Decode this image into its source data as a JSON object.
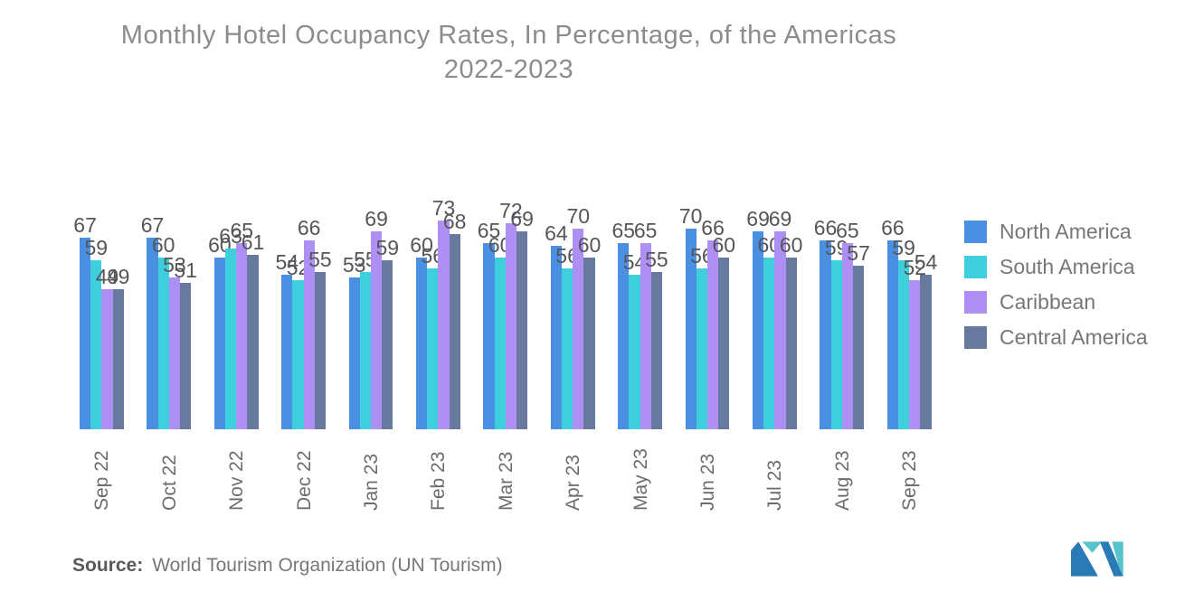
{
  "title": {
    "line1": "Monthly Hotel Occupancy Rates, In Percentage, of the Americas",
    "line2": "2022-2023"
  },
  "source": {
    "label": "Source:",
    "text": "World Tourism Organization (UN Tourism)"
  },
  "logo": {
    "name": "mordor-intelligence-logo",
    "blue": "#2a7ab8",
    "teal": "#55c5cb"
  },
  "chart_data": {
    "type": "bar",
    "title": "Monthly Hotel Occupancy Rates, In Percentage, of the Americas 2022-2023",
    "categories": [
      "Sep 22",
      "Oct 22",
      "Nov 22",
      "Dec 22",
      "Jan 23",
      "Feb 23",
      "Mar 23",
      "Apr 23",
      "May 23",
      "Jun 23",
      "Jul 23",
      "Aug 23",
      "Sep 23"
    ],
    "series": [
      {
        "name": "North America",
        "color": "#4a90e2",
        "values": [
          67,
          67,
          60,
          54,
          53,
          60,
          65,
          64,
          65,
          70,
          69,
          66,
          66
        ]
      },
      {
        "name": "South America",
        "color": "#3fcedc",
        "values": [
          59,
          60,
          63,
          52,
          55,
          56,
          60,
          56,
          54,
          56,
          60,
          59,
          59
        ]
      },
      {
        "name": "Caribbean",
        "color": "#ae90f4",
        "values": [
          49,
          53,
          65,
          66,
          69,
          73,
          72,
          70,
          65,
          66,
          69,
          65,
          52
        ]
      },
      {
        "name": "Central America",
        "color": "#68799f",
        "values": [
          49,
          51,
          61,
          55,
          59,
          68,
          69,
          60,
          55,
          60,
          60,
          57,
          54
        ]
      }
    ],
    "data_labels": true,
    "grid": false,
    "y_axis_visible": false,
    "ylim": [
      0,
      80
    ],
    "legend_position": "right",
    "unit": "percent"
  }
}
